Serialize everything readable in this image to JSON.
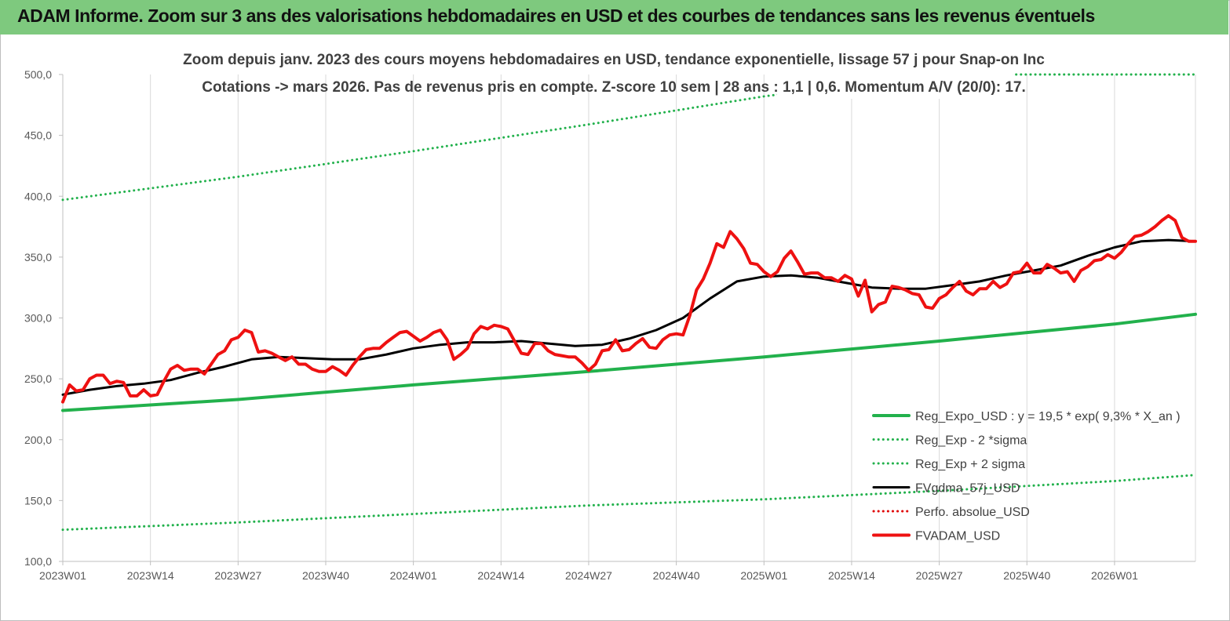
{
  "banner": {
    "title": "ADAM Informe. Zoom sur 3 ans des valorisations hebdomadaires en USD et des courbes de tendances sans les revenus éventuels",
    "color": "#7ec97e"
  },
  "chart_data": {
    "type": "line",
    "title": "Zoom depuis janv. 2023 des cours moyens hebdomadaires en USD, tendance exponentielle, lissage 57 j pour Snap-on Inc",
    "subtitle": "Cotations -> mars 2026. Pas de revenus pris en compte. Z-score 10 sem | 28 ans : 1,1 | 0,6. Momentum A/V (20/0): 17.",
    "xlabel": "",
    "ylabel": "",
    "ylim": [
      100,
      500
    ],
    "y_ticks": [
      "100,0",
      "150,0",
      "200,0",
      "250,0",
      "300,0",
      "350,0",
      "400,0",
      "450,0",
      "500,0"
    ],
    "x_ticks": [
      "2023W01",
      "2023W14",
      "2023W27",
      "2023W40",
      "2024W01",
      "2024W14",
      "2024W27",
      "2024W40",
      "2025W01",
      "2025W14",
      "2025W27",
      "2025W40",
      "2026W01"
    ],
    "x_unit": "week index from 2023W01 (0) to 2026W13 (168)",
    "grid": "vertical",
    "legend_position": "bottom-right",
    "series": [
      {
        "name": "Reg_Expo_USD : y = 19,5 * exp( 9,3% * X_an )",
        "color": "#22b14c",
        "style": "solid-thick",
        "points": [
          [
            0,
            224
          ],
          [
            26,
            233
          ],
          [
            52,
            245
          ],
          [
            78,
            256
          ],
          [
            104,
            268
          ],
          [
            130,
            281
          ],
          [
            156,
            295
          ],
          [
            168,
            303
          ]
        ]
      },
      {
        "name": "Reg_Exp - 2 *sigma",
        "color": "#22b14c",
        "style": "dotted",
        "points": [
          [
            0,
            126
          ],
          [
            26,
            132
          ],
          [
            52,
            139
          ],
          [
            78,
            146
          ],
          [
            104,
            151
          ],
          [
            130,
            158
          ],
          [
            156,
            166
          ],
          [
            168,
            171
          ]
        ]
      },
      {
        "name": "Reg_Exp + 2 sigma",
        "color": "#22b14c",
        "style": "dotted",
        "points": [
          [
            0,
            397
          ],
          [
            26,
            416
          ],
          [
            52,
            437
          ],
          [
            78,
            459
          ],
          [
            104,
            482
          ],
          [
            130,
            500
          ],
          [
            168,
            500
          ]
        ]
      },
      {
        "name": "FVgdma_57j_USD",
        "color": "#000000",
        "style": "solid",
        "points": [
          [
            0,
            237
          ],
          [
            4,
            241
          ],
          [
            8,
            244
          ],
          [
            12,
            246
          ],
          [
            16,
            249
          ],
          [
            20,
            255
          ],
          [
            24,
            260
          ],
          [
            28,
            266
          ],
          [
            32,
            268
          ],
          [
            36,
            267
          ],
          [
            40,
            266
          ],
          [
            44,
            266
          ],
          [
            48,
            270
          ],
          [
            52,
            275
          ],
          [
            56,
            278
          ],
          [
            60,
            280
          ],
          [
            64,
            280
          ],
          [
            68,
            281
          ],
          [
            72,
            279
          ],
          [
            76,
            277
          ],
          [
            80,
            278
          ],
          [
            84,
            283
          ],
          [
            88,
            290
          ],
          [
            92,
            300
          ],
          [
            96,
            316
          ],
          [
            100,
            330
          ],
          [
            104,
            334
          ],
          [
            108,
            335
          ],
          [
            112,
            333
          ],
          [
            116,
            329
          ],
          [
            120,
            325
          ],
          [
            124,
            324
          ],
          [
            128,
            324
          ],
          [
            132,
            327
          ],
          [
            136,
            330
          ],
          [
            140,
            335
          ],
          [
            144,
            339
          ],
          [
            148,
            343
          ],
          [
            152,
            351
          ],
          [
            156,
            358
          ],
          [
            160,
            363
          ],
          [
            164,
            364
          ],
          [
            168,
            363
          ]
        ]
      },
      {
        "name": "Perfo. absolue_USD",
        "color": "#e00000",
        "style": "dotted",
        "points": []
      },
      {
        "name": "FVADAM_USD",
        "color": "#ee1111",
        "style": "solid-thick",
        "points": [
          [
            0,
            231
          ],
          [
            1,
            245
          ],
          [
            2,
            240
          ],
          [
            3,
            241
          ],
          [
            4,
            250
          ],
          [
            5,
            253
          ],
          [
            6,
            253
          ],
          [
            7,
            246
          ],
          [
            8,
            248
          ],
          [
            9,
            247
          ],
          [
            10,
            236
          ],
          [
            11,
            236
          ],
          [
            12,
            241
          ],
          [
            13,
            236
          ],
          [
            14,
            237
          ],
          [
            15,
            248
          ],
          [
            16,
            258
          ],
          [
            17,
            261
          ],
          [
            18,
            257
          ],
          [
            19,
            258
          ],
          [
            20,
            258
          ],
          [
            21,
            254
          ],
          [
            22,
            262
          ],
          [
            23,
            270
          ],
          [
            24,
            273
          ],
          [
            25,
            282
          ],
          [
            26,
            284
          ],
          [
            27,
            290
          ],
          [
            28,
            288
          ],
          [
            29,
            272
          ],
          [
            30,
            273
          ],
          [
            31,
            271
          ],
          [
            32,
            268
          ],
          [
            33,
            265
          ],
          [
            34,
            268
          ],
          [
            35,
            262
          ],
          [
            36,
            262
          ],
          [
            37,
            258
          ],
          [
            38,
            256
          ],
          [
            39,
            256
          ],
          [
            40,
            260
          ],
          [
            41,
            257
          ],
          [
            42,
            253
          ],
          [
            43,
            261
          ],
          [
            44,
            268
          ],
          [
            45,
            274
          ],
          [
            46,
            275
          ],
          [
            47,
            275
          ],
          [
            48,
            280
          ],
          [
            49,
            284
          ],
          [
            50,
            288
          ],
          [
            51,
            289
          ],
          [
            52,
            285
          ],
          [
            53,
            281
          ],
          [
            54,
            284
          ],
          [
            55,
            288
          ],
          [
            56,
            290
          ],
          [
            57,
            282
          ],
          [
            58,
            266
          ],
          [
            59,
            270
          ],
          [
            60,
            275
          ],
          [
            61,
            287
          ],
          [
            62,
            293
          ],
          [
            63,
            291
          ],
          [
            64,
            294
          ],
          [
            65,
            293
          ],
          [
            66,
            291
          ],
          [
            67,
            281
          ],
          [
            68,
            271
          ],
          [
            69,
            270
          ],
          [
            70,
            279
          ],
          [
            71,
            279
          ],
          [
            72,
            273
          ],
          [
            73,
            270
          ],
          [
            74,
            269
          ],
          [
            75,
            268
          ],
          [
            76,
            268
          ],
          [
            77,
            263
          ],
          [
            78,
            257
          ],
          [
            79,
            262
          ],
          [
            80,
            273
          ],
          [
            81,
            274
          ],
          [
            82,
            282
          ],
          [
            83,
            273
          ],
          [
            84,
            274
          ],
          [
            85,
            279
          ],
          [
            86,
            283
          ],
          [
            87,
            276
          ],
          [
            88,
            275
          ],
          [
            89,
            282
          ],
          [
            90,
            286
          ],
          [
            91,
            287
          ],
          [
            92,
            286
          ],
          [
            93,
            302
          ],
          [
            94,
            323
          ],
          [
            95,
            332
          ],
          [
            96,
            345
          ],
          [
            97,
            361
          ],
          [
            98,
            358
          ],
          [
            99,
            371
          ],
          [
            100,
            365
          ],
          [
            101,
            357
          ],
          [
            102,
            345
          ],
          [
            103,
            344
          ],
          [
            104,
            338
          ],
          [
            105,
            334
          ],
          [
            106,
            338
          ],
          [
            107,
            349
          ],
          [
            108,
            355
          ],
          [
            109,
            346
          ],
          [
            110,
            336
          ],
          [
            111,
            337
          ],
          [
            112,
            337
          ],
          [
            113,
            333
          ],
          [
            114,
            333
          ],
          [
            115,
            330
          ],
          [
            116,
            335
          ],
          [
            117,
            332
          ],
          [
            118,
            318
          ],
          [
            119,
            331
          ],
          [
            120,
            305
          ],
          [
            121,
            311
          ],
          [
            122,
            313
          ],
          [
            123,
            326
          ],
          [
            124,
            325
          ],
          [
            125,
            323
          ],
          [
            126,
            320
          ],
          [
            127,
            319
          ],
          [
            128,
            309
          ],
          [
            129,
            308
          ],
          [
            130,
            316
          ],
          [
            131,
            319
          ],
          [
            132,
            325
          ],
          [
            133,
            330
          ],
          [
            134,
            322
          ],
          [
            135,
            319
          ],
          [
            136,
            324
          ],
          [
            137,
            324
          ],
          [
            138,
            330
          ],
          [
            139,
            325
          ],
          [
            140,
            328
          ],
          [
            141,
            337
          ],
          [
            142,
            338
          ],
          [
            143,
            345
          ],
          [
            144,
            337
          ],
          [
            145,
            337
          ],
          [
            146,
            344
          ],
          [
            147,
            341
          ],
          [
            148,
            337
          ],
          [
            149,
            338
          ],
          [
            150,
            330
          ],
          [
            151,
            339
          ],
          [
            152,
            342
          ],
          [
            153,
            347
          ],
          [
            154,
            348
          ],
          [
            155,
            352
          ],
          [
            156,
            349
          ],
          [
            157,
            354
          ],
          [
            158,
            361
          ],
          [
            159,
            367
          ],
          [
            160,
            368
          ],
          [
            161,
            371
          ],
          [
            162,
            375
          ],
          [
            163,
            380
          ],
          [
            164,
            384
          ],
          [
            165,
            380
          ],
          [
            166,
            366
          ],
          [
            167,
            363
          ],
          [
            168,
            363
          ]
        ]
      }
    ]
  }
}
